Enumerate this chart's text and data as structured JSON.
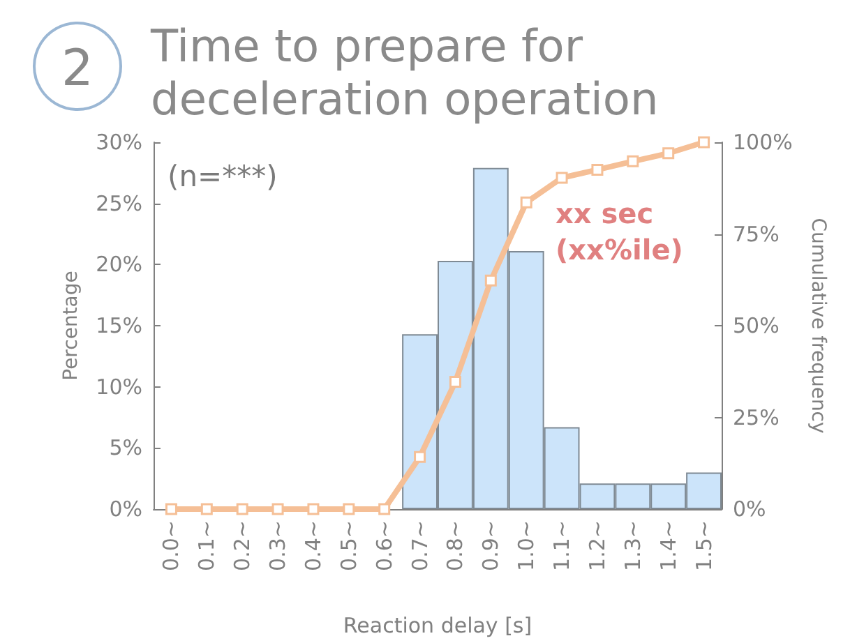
{
  "chart_data": {
    "type": "bar",
    "title": "Time to prepare for\ndeceleration operation",
    "xlabel": "Reaction delay [s]",
    "ylabel": "Percentage",
    "y2label": "Cumulative frequency",
    "annotations": [
      "2",
      "(n=***)",
      "xx sec\n(xx%ile)"
    ],
    "categories": [
      "0.0~",
      "0.1~",
      "0.2~",
      "0.3~",
      "0.4~",
      "0.5~",
      "0.6~",
      "0.7~",
      "0.8~",
      "0.9~",
      "1.0~",
      "1.1~",
      "1.2~",
      "1.3~",
      "1.4~",
      "1.5~"
    ],
    "series": [
      {
        "color": "#cce4fa",
        "values": [
          0,
          0,
          0,
          0,
          0,
          0,
          0,
          14.3,
          20.3,
          27.9,
          21.1,
          6.7,
          2.1,
          2.1,
          2.1,
          3.0
        ]
      },
      {
        "type": "line",
        "axis": "y2",
        "color": "#f5bf96",
        "marker": "square",
        "values": [
          0,
          0,
          0,
          0,
          0,
          0,
          0,
          14.2,
          34.7,
          62.3,
          83.6,
          90.3,
          92.5,
          94.8,
          97.0,
          100
        ]
      }
    ],
    "ylim": [
      0,
      30
    ],
    "yticks": [
      {
        "value": 0,
        "label": "0%"
      },
      {
        "value": 5,
        "label": "5%"
      },
      {
        "value": 10,
        "label": "10%"
      },
      {
        "value": 15,
        "label": "15%"
      },
      {
        "value": 20,
        "label": "20%"
      },
      {
        "value": 25,
        "label": "25%"
      },
      {
        "value": 30,
        "label": "30%"
      }
    ],
    "y2lim": [
      0,
      100
    ],
    "y2ticks": [
      {
        "value": 0,
        "label": "0%"
      },
      {
        "value": 25,
        "label": "25%"
      },
      {
        "value": 50,
        "label": "50%"
      },
      {
        "value": 75,
        "label": "75%"
      },
      {
        "value": 100,
        "label": "100%"
      }
    ],
    "grid": false
  }
}
